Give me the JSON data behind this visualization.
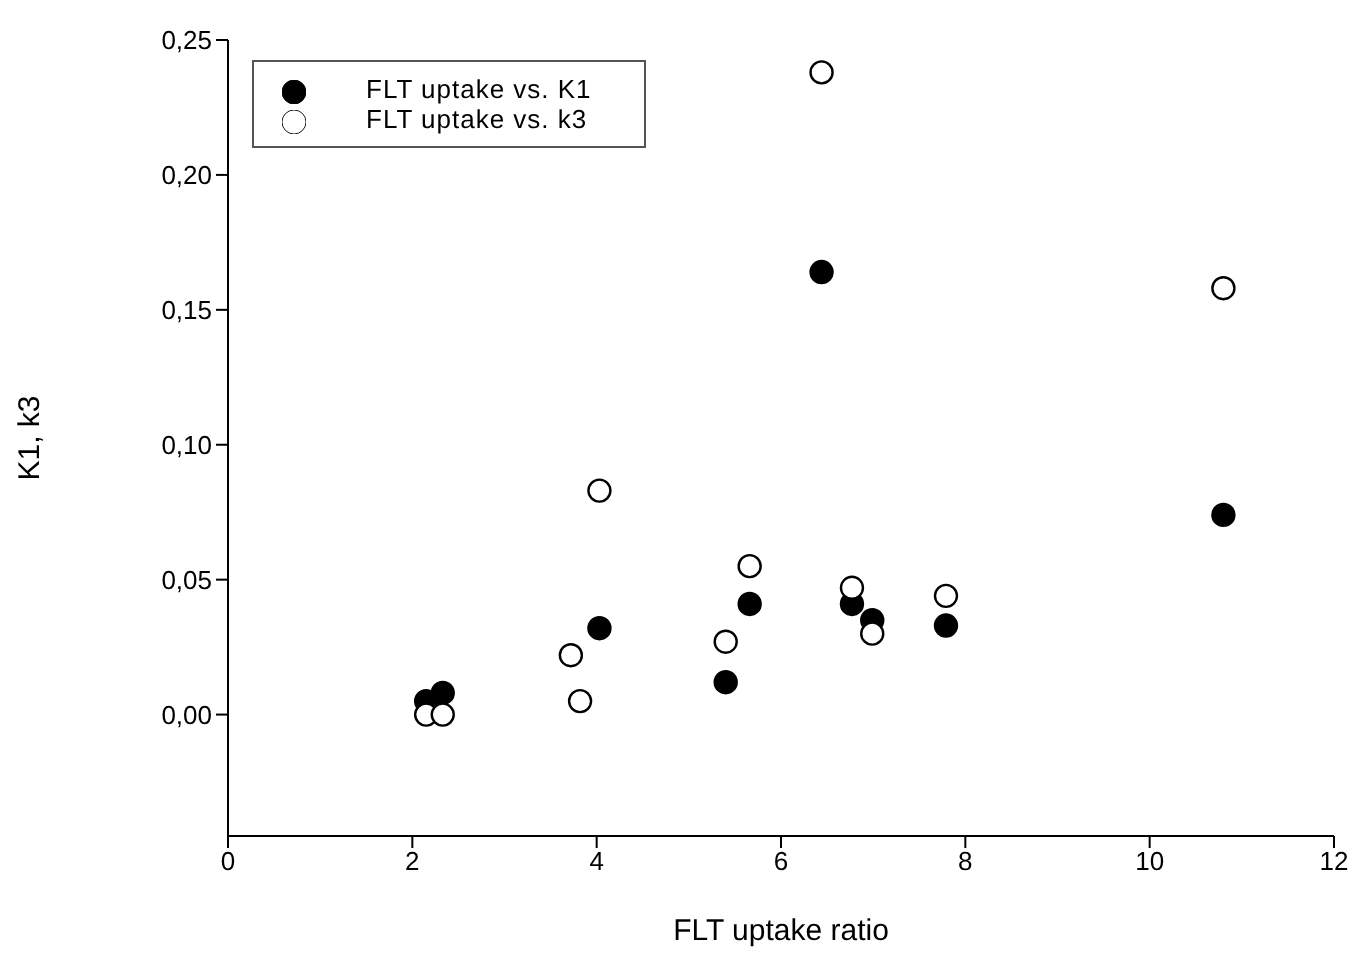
{
  "chart_data": {
    "type": "scatter",
    "xlabel": "FLT uptake ratio",
    "ylabel": "K1, k3",
    "xlim": [
      0,
      12
    ],
    "xticks": [
      0,
      2,
      4,
      6,
      8,
      10,
      12
    ],
    "ylim": [
      -0.045,
      0.25
    ],
    "yticks": [
      {
        "value": 0,
        "label": "0,00"
      },
      {
        "value": 0.05,
        "label": "0,05"
      },
      {
        "value": 0.1,
        "label": "0,10"
      },
      {
        "value": 0.15,
        "label": "0,15"
      },
      {
        "value": 0.2,
        "label": "0,20"
      },
      {
        "value": 0.25,
        "label": "0,25"
      }
    ],
    "x": [
      2.15,
      2.33,
      3.72,
      3.82,
      4.03,
      5.4,
      5.66,
      6.44,
      6.77,
      6.99,
      7.79,
      10.8
    ],
    "series": [
      {
        "name": "FLT uptake vs. K1",
        "color": "#000000",
        "values": [
          0.005,
          0.008,
          null,
          null,
          0.032,
          0.012,
          0.041,
          0.164,
          0.041,
          0.035,
          0.033,
          0.074
        ]
      },
      {
        "name": "FLT uptake vs. k3",
        "color": "#ffffff",
        "values": [
          0,
          0,
          0.022,
          0.005,
          0.083,
          0.027,
          0.055,
          0.238,
          0.047,
          0.03,
          0.044,
          0.158
        ]
      }
    ],
    "marker": "circle",
    "legend": "top left",
    "grid": false
  }
}
